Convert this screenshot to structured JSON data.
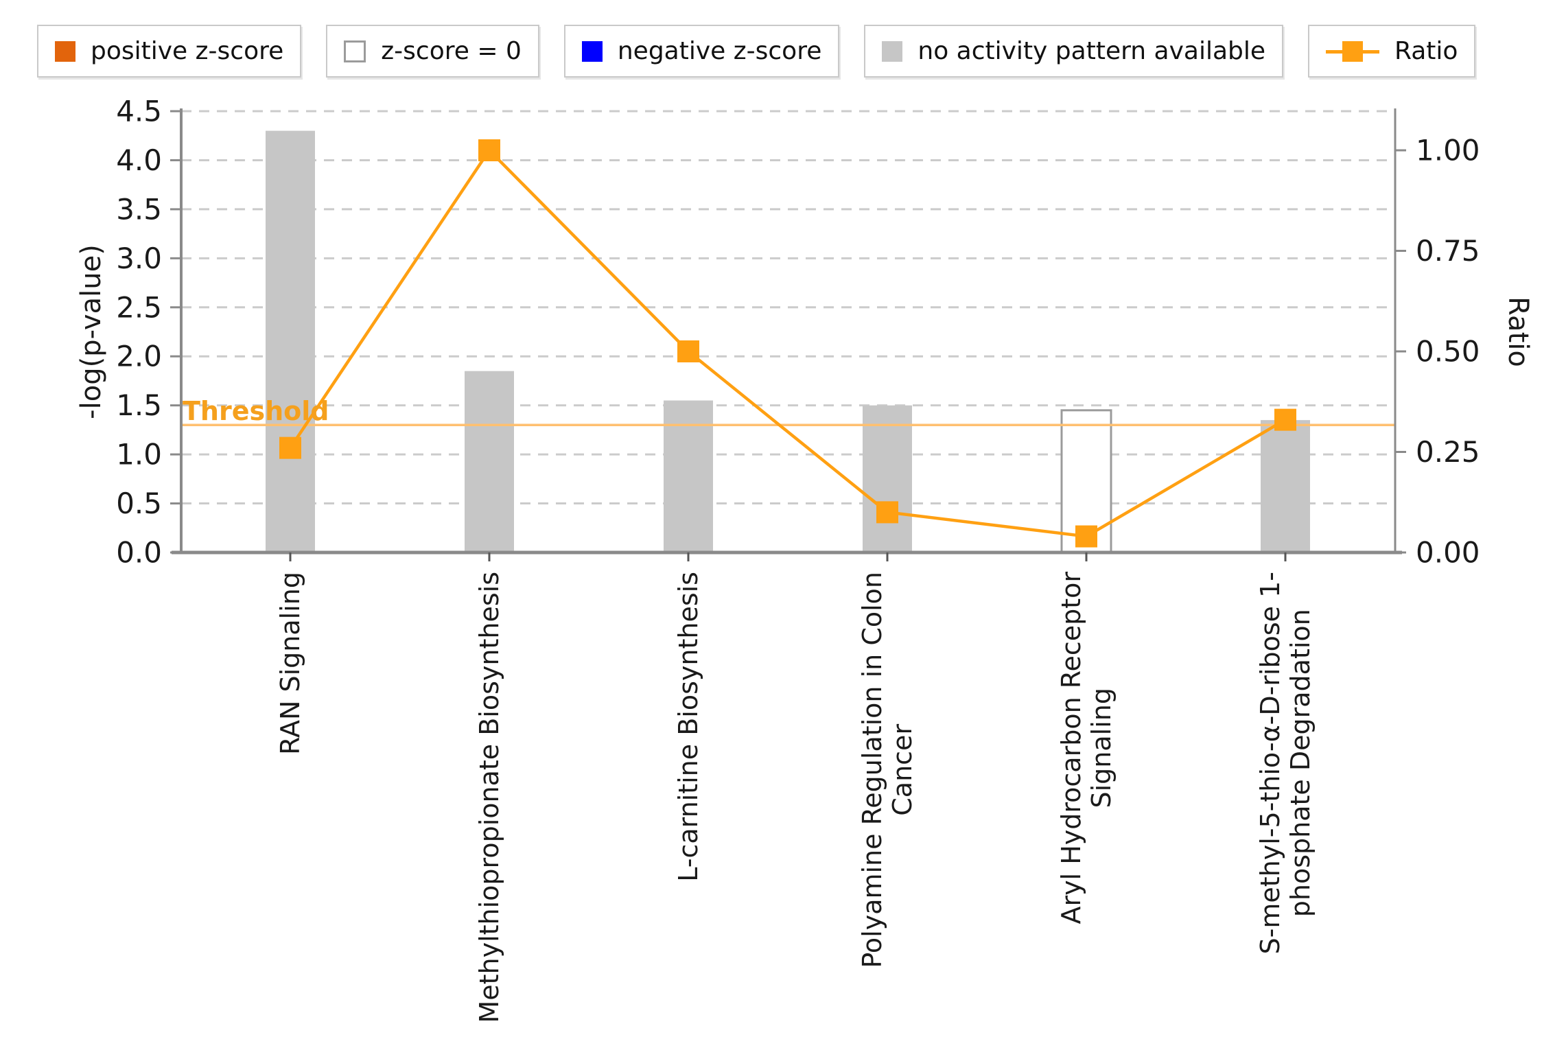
{
  "legend": {
    "items": [
      {
        "label": "positive z-score",
        "swatch": "filled",
        "color": "#e2640c"
      },
      {
        "label": "z-score = 0",
        "swatch": "outlined",
        "color": "#ffffff"
      },
      {
        "label": "negative z-score",
        "swatch": "filled",
        "color": "#0000ff"
      },
      {
        "label": "no activity pattern available",
        "swatch": "filled",
        "color": "#c6c6c6"
      },
      {
        "label": "Ratio",
        "swatch": "line-marker",
        "color": "#ffa012"
      }
    ]
  },
  "chart_data": {
    "type": "bar",
    "title": "",
    "categories": [
      [
        "RAN Signaling"
      ],
      [
        "Methylthiopropionate Biosynthesis"
      ],
      [
        "L-carnitine Biosynthesis"
      ],
      [
        "Polyamine Regulation in Colon",
        "Cancer"
      ],
      [
        "Aryl Hydrocarbon Receptor",
        "Signaling"
      ],
      [
        "S-methyl-5-thio-α-D-ribose 1-",
        "phosphate Degradation"
      ]
    ],
    "series": [
      {
        "name": "-log(p-value)",
        "type": "bar",
        "axis": "left",
        "values": [
          4.3,
          1.85,
          1.55,
          1.5,
          1.45,
          1.35
        ],
        "bar_styles": [
          "no_activity_pattern",
          "no_activity_pattern",
          "no_activity_pattern",
          "no_activity_pattern",
          "z_score_zero",
          "no_activity_pattern"
        ]
      },
      {
        "name": "Ratio",
        "type": "line",
        "axis": "right",
        "values": [
          0.26,
          1.0,
          0.5,
          0.1,
          0.04,
          0.33
        ]
      }
    ],
    "left_axis": {
      "label": "-log(p-value)",
      "min": 0,
      "max": 4.5,
      "step": 0.5,
      "tick_labels": [
        "0.0",
        "0.5",
        "1.0",
        "1.5",
        "2.0",
        "2.5",
        "3.0",
        "3.5",
        "4.0",
        "4.5"
      ]
    },
    "right_axis": {
      "label": "Ratio",
      "min": 0,
      "max": 1.0,
      "step": 0.25,
      "tick_labels": [
        "0.00",
        "0.25",
        "0.50",
        "0.75",
        "1.00"
      ]
    },
    "threshold": {
      "label": "Threshold",
      "value": 1.3
    },
    "grid": "horizontal-dashed",
    "legend_position": "top"
  },
  "colors": {
    "positive_z": "#e2640c",
    "negative_z": "#0000ff",
    "no_activity_bar": "#c6c6c6",
    "zero_bar_fill": "#ffffff",
    "zero_bar_border": "#9b9b9b",
    "ratio_line": "#ffa012",
    "threshold_line": "#ffc070",
    "threshold_text": "#f5a01d",
    "grid_line": "#cbcbcb",
    "axis_line": "#8a8a8a",
    "category_tick": "#555555"
  }
}
